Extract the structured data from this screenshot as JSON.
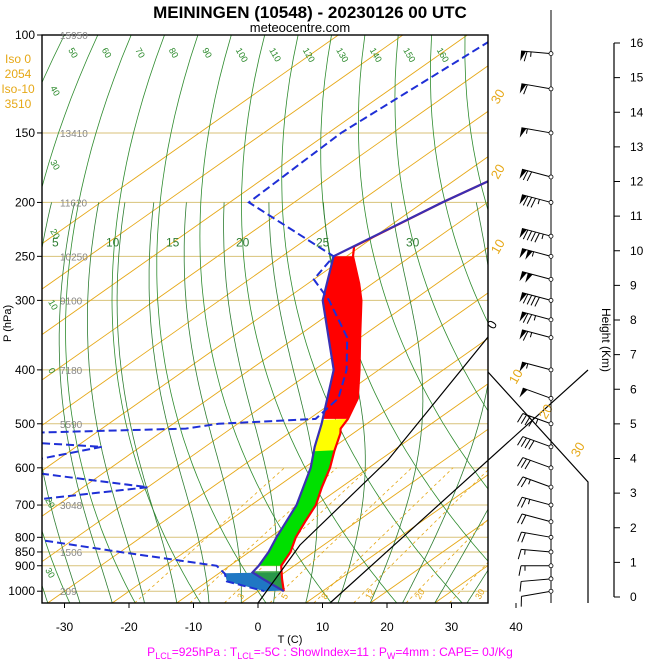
{
  "chart_data": {
    "type": "skew-t",
    "title": "MEININGEN (10548) - 20230126 00 UTC",
    "subtitle": "meteocentre.com",
    "xlabel": "T (C)",
    "ylabel": "P (hPa)",
    "y2label": "Height (Km)",
    "footer": "P_LCL=925hPa : T_LCL=-5C : ShowIndex=11 : P_W=4mm : CAPE= 0J/Kg",
    "footer_parts": [
      {
        "text": "P",
        "sub": false
      },
      {
        "text": "LCL",
        "sub": true
      },
      {
        "text": "=925hPa : T",
        "sub": false
      },
      {
        "text": "LCL",
        "sub": true
      },
      {
        "text": "=-5C : ShowIndex=11 : P",
        "sub": false
      },
      {
        "text": "W",
        "sub": true
      },
      {
        "text": "=4mm : CAPE= 0J/Kg",
        "sub": false
      }
    ],
    "iso_labels": [
      "Iso 0",
      "2054",
      "Iso-10",
      "3510"
    ],
    "x_ticks": [
      -30,
      -20,
      -10,
      0,
      10,
      20,
      30,
      40
    ],
    "x_range": [
      -33,
      50
    ],
    "pressure_ticks": [
      100,
      150,
      200,
      250,
      300,
      400,
      500,
      600,
      700,
      800,
      850,
      900,
      1000
    ],
    "pressure_range": [
      100,
      1050
    ],
    "height_ticks": [
      0,
      1,
      2,
      3,
      4,
      5,
      6,
      7,
      8,
      9,
      10,
      11,
      12,
      13,
      14,
      15,
      16
    ],
    "height_labels_m": [
      {
        "p": 100,
        "h": "15950"
      },
      {
        "p": 150,
        "h": "13410"
      },
      {
        "p": 200,
        "h": "11620"
      },
      {
        "p": 250,
        "h": "10250"
      },
      {
        "p": 300,
        "h": "9100"
      },
      {
        "p": 400,
        "h": "7180"
      },
      {
        "p": 500,
        "h": "5590"
      },
      {
        "p": 700,
        "h": "3048"
      },
      {
        "p": 850,
        "h": "1506"
      },
      {
        "p": 1000,
        "h": "209"
      }
    ],
    "dry_adiabat_labels": [
      "50",
      "60",
      "70",
      "80",
      "90",
      "100",
      "110",
      "120",
      "130",
      "140",
      "150",
      "160"
    ],
    "moist_adiabat_labels": [
      "5",
      "10",
      "15",
      "20",
      "25",
      "30"
    ],
    "mixing_labels": [
      "3",
      "5",
      "8",
      "12",
      "20",
      "30"
    ],
    "top_isotherm_labels": [
      "30",
      "20",
      "10",
      "0",
      "10",
      "20",
      "30"
    ],
    "temperature_profile": [
      {
        "p": 100,
        "t": -44
      },
      {
        "p": 150,
        "t": -49
      },
      {
        "p": 200,
        "t": -57
      },
      {
        "p": 240,
        "t": -61
      },
      {
        "p": 250,
        "t": -59
      },
      {
        "p": 280,
        "t": -52
      },
      {
        "p": 300,
        "t": -48
      },
      {
        "p": 350,
        "t": -40
      },
      {
        "p": 400,
        "t": -33
      },
      {
        "p": 450,
        "t": -27
      },
      {
        "p": 490,
        "t": -24
      },
      {
        "p": 510,
        "t": -23
      },
      {
        "p": 520,
        "t": -22
      },
      {
        "p": 560,
        "t": -19
      },
      {
        "p": 600,
        "t": -16
      },
      {
        "p": 650,
        "t": -13
      },
      {
        "p": 700,
        "t": -10
      },
      {
        "p": 750,
        "t": -8
      },
      {
        "p": 800,
        "t": -6
      },
      {
        "p": 850,
        "t": -3.6
      },
      {
        "p": 900,
        "t": -2
      },
      {
        "p": 950,
        "t": 1
      },
      {
        "p": 1000,
        "t": 4
      }
    ],
    "dewpoint_profile": [
      {
        "p": 100,
        "t": -85
      },
      {
        "p": 150,
        "t": -88
      },
      {
        "p": 200,
        "t": -87
      },
      {
        "p": 250,
        "t": -62
      },
      {
        "p": 275,
        "t": -60
      },
      {
        "p": 300,
        "t": -53
      },
      {
        "p": 350,
        "t": -42
      },
      {
        "p": 400,
        "t": -35
      },
      {
        "p": 450,
        "t": -30
      },
      {
        "p": 490,
        "t": -29
      },
      {
        "p": 500,
        "t": -43
      },
      {
        "p": 510,
        "t": -47
      },
      {
        "p": 520,
        "t": -73
      },
      {
        "p": 527,
        "t": -85
      },
      {
        "p": 550,
        "t": -56
      },
      {
        "p": 600,
        "t": -68
      },
      {
        "p": 650,
        "t": -40
      },
      {
        "p": 700,
        "t": -61
      },
      {
        "p": 780,
        "t": -56
      },
      {
        "p": 850,
        "t": -30
      },
      {
        "p": 900,
        "t": -12
      },
      {
        "p": 930,
        "t": -9
      },
      {
        "p": 960,
        "t": -7
      },
      {
        "p": 1000,
        "t": 1
      }
    ],
    "parcel_profile": [
      {
        "p": 100,
        "t": -44
      },
      {
        "p": 150,
        "t": -49
      },
      {
        "p": 200,
        "t": -57
      },
      {
        "p": 250,
        "t": -62
      },
      {
        "p": 300,
        "t": -54
      },
      {
        "p": 400,
        "t": -37
      },
      {
        "p": 500,
        "t": -27
      },
      {
        "p": 550,
        "t": -23
      },
      {
        "p": 600,
        "t": -19
      },
      {
        "p": 700,
        "t": -13
      },
      {
        "p": 800,
        "t": -9
      },
      {
        "p": 850,
        "t": -7
      },
      {
        "p": 900,
        "t": -5.5
      },
      {
        "p": 925,
        "t": -5
      },
      {
        "p": 950,
        "t": -2
      },
      {
        "p": 1000,
        "t": 4
      }
    ],
    "wind_barbs": [
      {
        "p": 108,
        "dir": 275,
        "spd": 65
      },
      {
        "p": 125,
        "dir": 280,
        "spd": 60
      },
      {
        "p": 150,
        "dir": 280,
        "spd": 55
      },
      {
        "p": 180,
        "dir": 285,
        "spd": 70
      },
      {
        "p": 200,
        "dir": 285,
        "spd": 85
      },
      {
        "p": 230,
        "dir": 285,
        "spd": 95
      },
      {
        "p": 250,
        "dir": 285,
        "spd": 105
      },
      {
        "p": 275,
        "dir": 285,
        "spd": 100
      },
      {
        "p": 300,
        "dir": 285,
        "spd": 90
      },
      {
        "p": 325,
        "dir": 285,
        "spd": 75
      },
      {
        "p": 350,
        "dir": 285,
        "spd": 65
      },
      {
        "p": 400,
        "dir": 285,
        "spd": 55
      },
      {
        "p": 450,
        "dir": 290,
        "spd": 50
      },
      {
        "p": 500,
        "dir": 290,
        "spd": 45
      },
      {
        "p": 550,
        "dir": 290,
        "spd": 40
      },
      {
        "p": 600,
        "dir": 290,
        "spd": 30
      },
      {
        "p": 650,
        "dir": 290,
        "spd": 25
      },
      {
        "p": 700,
        "dir": 285,
        "spd": 25
      },
      {
        "p": 750,
        "dir": 285,
        "spd": 20
      },
      {
        "p": 800,
        "dir": 280,
        "spd": 20
      },
      {
        "p": 850,
        "dir": 275,
        "spd": 15
      },
      {
        "p": 900,
        "dir": 270,
        "spd": 15
      },
      {
        "p": 950,
        "dir": 265,
        "spd": 10
      },
      {
        "p": 1000,
        "dir": 260,
        "spd": 10
      }
    ],
    "colors": {
      "isobar": "#d8c27a",
      "isotherm": "#e6a817",
      "dry_adiabat": "#2e8b2e",
      "moist_adiabat": "#2e7d32",
      "mixing_ratio": "#e6a817",
      "temperature": "#ff0000",
      "dewpoint": "#1f2fd6",
      "parcel": "#3a2fb3",
      "cape_fill": "#ff0000",
      "cin_fill": "#00e000",
      "neg_fill": "#1f77c4",
      "iso_text": "#e6a817",
      "footer_text": "#ff00ff",
      "hghts_text": "#888888"
    }
  }
}
